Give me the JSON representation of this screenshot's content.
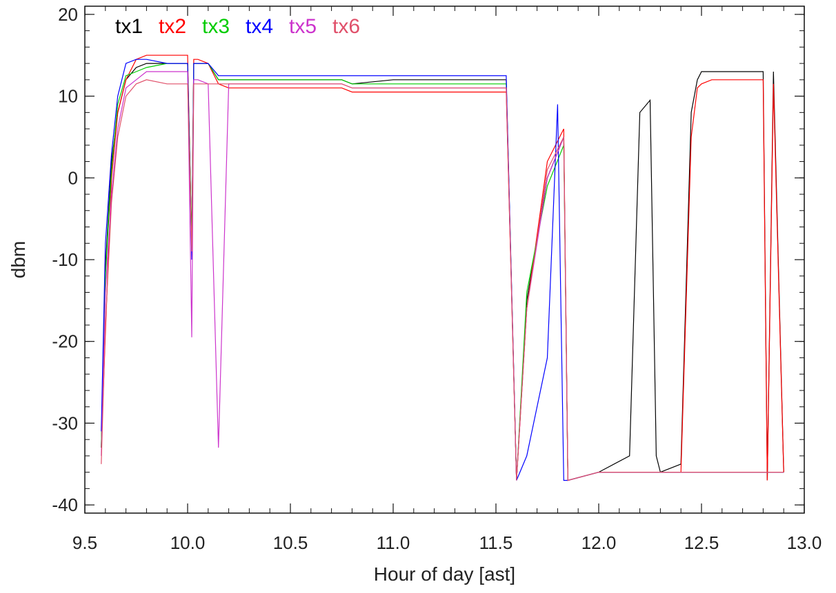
{
  "chart_data": {
    "type": "line",
    "title": "",
    "xlabel": "Hour of day [ast]",
    "ylabel": "dbm",
    "xlim": [
      9.5,
      13.0
    ],
    "ylim": [
      -41,
      21
    ],
    "xticks": [
      9.5,
      10.0,
      10.5,
      11.0,
      11.5,
      12.0,
      12.5,
      13.0
    ],
    "xtick_labels": [
      "9.5",
      "10.0",
      "10.5",
      "11.0",
      "11.5",
      "12.0",
      "12.5",
      "13.0"
    ],
    "yticks": [
      -40,
      -30,
      -20,
      -10,
      0,
      10,
      20
    ],
    "ytick_labels": [
      "-40",
      "-30",
      "-20",
      "-10",
      "0",
      "10",
      "20"
    ],
    "grid": false,
    "legend_position": "top-left",
    "series": [
      {
        "name": "tx1",
        "color": "#000000",
        "x": [
          9.58,
          9.6,
          9.63,
          9.66,
          9.7,
          9.75,
          9.8,
          9.9,
          10.0,
          10.02,
          10.03,
          10.05,
          10.1,
          10.15,
          10.2,
          10.5,
          10.75,
          10.8,
          11.0,
          11.55,
          11.6,
          11.65,
          11.75,
          11.83,
          11.85,
          12.0,
          12.15,
          12.2,
          12.25,
          12.28,
          12.3,
          12.4,
          12.45,
          12.48,
          12.5,
          12.55,
          12.7,
          12.8,
          12.82,
          12.85,
          12.9
        ],
        "y": [
          -33,
          -11,
          2,
          8,
          12,
          13.5,
          14,
          14,
          14,
          -8,
          14,
          14,
          14,
          12,
          12,
          12,
          12,
          11.5,
          12,
          12,
          -37,
          -15,
          0,
          5,
          -37,
          -36,
          -34,
          8,
          9.5,
          -34,
          -36,
          -35,
          8,
          12,
          13,
          13,
          13,
          13,
          -37,
          13,
          -36
        ]
      },
      {
        "name": "tx2",
        "color": "#ff0000",
        "x": [
          9.58,
          9.6,
          9.63,
          9.66,
          9.7,
          9.75,
          9.8,
          9.9,
          10.0,
          10.02,
          10.03,
          10.05,
          10.1,
          10.15,
          10.2,
          10.5,
          10.75,
          10.8,
          11.0,
          11.55,
          11.6,
          11.65,
          11.75,
          11.83,
          11.85,
          12.0,
          12.2,
          12.4,
          12.45,
          12.48,
          12.5,
          12.55,
          12.7,
          12.8,
          12.82,
          12.85,
          12.9
        ],
        "y": [
          -33,
          -19,
          0,
          8,
          12,
          14.5,
          15,
          15,
          15,
          -8,
          14.5,
          14.5,
          14,
          11.5,
          11,
          11,
          11,
          10.5,
          10.5,
          10.5,
          -37,
          -16,
          2,
          6,
          -37,
          -36,
          -36,
          -36,
          5,
          11,
          11.5,
          12,
          12,
          12,
          -37,
          11.5,
          -36
        ]
      },
      {
        "name": "tx3",
        "color": "#00cc00",
        "x": [
          9.58,
          9.6,
          9.63,
          9.66,
          9.7,
          9.75,
          9.8,
          9.9,
          10.0,
          10.02,
          10.03,
          10.05,
          10.1,
          10.15,
          10.2,
          10.5,
          10.75,
          10.8,
          11.0,
          11.55,
          11.6,
          11.65,
          11.75,
          11.83,
          11.85,
          12.0,
          12.5,
          12.9
        ],
        "y": [
          -33,
          -12,
          1,
          9,
          12.5,
          13,
          13.5,
          14,
          14,
          -8,
          14,
          14,
          14,
          12,
          12,
          12,
          12,
          11.5,
          11.5,
          11.5,
          -37,
          -14,
          -1,
          4,
          -37,
          -36,
          -36,
          -36
        ]
      },
      {
        "name": "tx4",
        "color": "#0000ff",
        "x": [
          9.58,
          9.6,
          9.63,
          9.66,
          9.7,
          9.75,
          9.8,
          9.9,
          10.0,
          10.02,
          10.03,
          10.05,
          10.1,
          10.15,
          10.2,
          10.5,
          10.75,
          10.8,
          11.0,
          11.55,
          11.6,
          11.65,
          11.75,
          11.8,
          11.83,
          11.85,
          12.0,
          12.5,
          12.9
        ],
        "y": [
          -31,
          -8,
          3,
          10,
          14,
          14.5,
          14.5,
          14,
          14,
          -10,
          14,
          14,
          14,
          12.5,
          12.5,
          12.5,
          12.5,
          12.5,
          12.5,
          12.5,
          -37,
          -34,
          -22,
          9,
          -37,
          -37,
          -36,
          -36,
          -36
        ]
      },
      {
        "name": "tx5",
        "color": "#cc33cc",
        "x": [
          9.58,
          9.6,
          9.63,
          9.66,
          9.7,
          9.75,
          9.8,
          9.9,
          10.0,
          10.02,
          10.03,
          10.05,
          10.1,
          10.15,
          10.2,
          10.5,
          10.75,
          10.8,
          11.0,
          11.55,
          11.6,
          11.65,
          11.75,
          11.83,
          11.85,
          12.0,
          12.5,
          12.9
        ],
        "y": [
          -34,
          -14,
          -2,
          6,
          11,
          12,
          13,
          13,
          13,
          -19.5,
          12,
          12,
          11.5,
          -33,
          11.5,
          11.5,
          11.5,
          11,
          11,
          11,
          -37,
          -16,
          0,
          5,
          -37,
          -36,
          -36,
          -36
        ]
      },
      {
        "name": "tx6",
        "color": "#e0506a",
        "x": [
          9.58,
          9.6,
          9.63,
          9.66,
          9.7,
          9.75,
          9.8,
          9.9,
          10.0,
          10.02,
          10.03,
          10.05,
          10.1,
          10.15,
          10.2,
          10.5,
          10.75,
          10.8,
          11.0,
          11.55,
          11.6,
          11.65,
          11.75,
          11.83,
          11.85,
          12.0,
          12.5,
          12.9
        ],
        "y": [
          -35,
          -18,
          -3,
          5,
          10,
          11.5,
          12,
          11.5,
          11.5,
          -9,
          11.5,
          11.5,
          11.5,
          11.5,
          11.5,
          11.5,
          11.5,
          11,
          11,
          11,
          -37,
          -16,
          1,
          5,
          -37,
          -36,
          -36,
          -36
        ]
      }
    ]
  }
}
